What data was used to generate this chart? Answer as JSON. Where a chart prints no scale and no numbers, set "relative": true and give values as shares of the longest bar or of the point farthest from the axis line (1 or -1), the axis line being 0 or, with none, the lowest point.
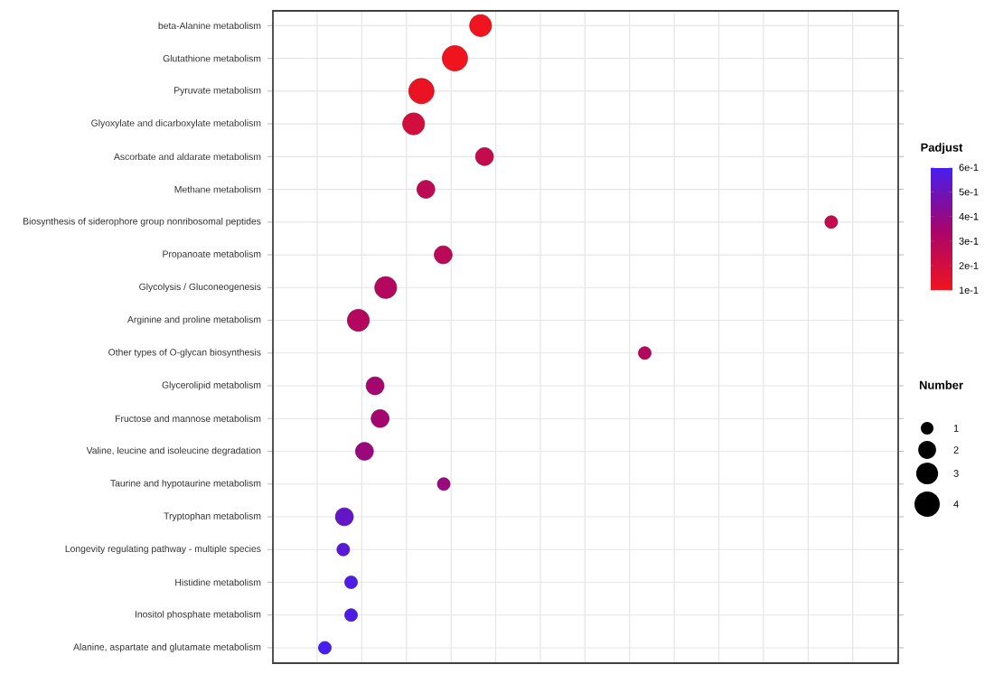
{
  "chart_data": {
    "type": "bubble",
    "orientation": "horizontal",
    "relative": true,
    "grid": true,
    "categories": [
      "beta-Alanine metabolism",
      "Glutathione metabolism",
      "Pyruvate metabolism",
      "Glyoxylate and dicarboxylate metabolism",
      "Ascorbate and aldarate metabolism",
      "Methane metabolism",
      "Biosynthesis of siderophore group nonribosomal peptides",
      "Propanoate metabolism",
      "Glycolysis / Gluconeogenesis",
      "Arginine and proline metabolism",
      "Other types of O-glycan biosynthesis",
      "Glycerolipid metabolism",
      "Fructose and mannose metabolism",
      "Valine, leucine and isoleucine degradation",
      "Taurine and hypotaurine metabolism",
      "Tryptophan metabolism",
      "Longevity regulating pathway - multiple species",
      "Histidine metabolism",
      "Inositol phosphate metabolism",
      "Alanine, aspartate and glutamate metabolism"
    ],
    "values": [
      0.372,
      0.326,
      0.266,
      0.252,
      0.379,
      0.274,
      1,
      0.305,
      0.202,
      0.153,
      0.666,
      0.183,
      0.192,
      0.164,
      0.306,
      0.128,
      0.126,
      0.14,
      0.14,
      0.093
    ],
    "sizes": [
      3,
      4,
      4,
      3,
      2,
      2,
      1,
      2,
      3,
      3,
      1,
      2,
      2,
      2,
      1,
      2,
      1,
      1,
      1,
      1
    ],
    "cvalues": [
      0.1,
      0.1,
      0.12,
      0.2,
      0.25,
      0.27,
      0.25,
      0.28,
      0.3,
      0.3,
      0.3,
      0.35,
      0.35,
      0.38,
      0.38,
      0.52,
      0.55,
      0.58,
      0.58,
      0.6
    ],
    "clabel": "Padjust",
    "clim": [
      0.1,
      0.6
    ],
    "cticks": [
      {
        "value": 0.6,
        "label": "6e-1"
      },
      {
        "value": 0.5,
        "label": "5e-1"
      },
      {
        "value": 0.4,
        "label": "4e-1"
      },
      {
        "value": 0.3,
        "label": "3e-1"
      },
      {
        "value": 0.2,
        "label": "2e-1"
      },
      {
        "value": 0.1,
        "label": "1e-1"
      }
    ],
    "legend_title": "Number",
    "size_legend": [
      1,
      2,
      3,
      4
    ]
  }
}
